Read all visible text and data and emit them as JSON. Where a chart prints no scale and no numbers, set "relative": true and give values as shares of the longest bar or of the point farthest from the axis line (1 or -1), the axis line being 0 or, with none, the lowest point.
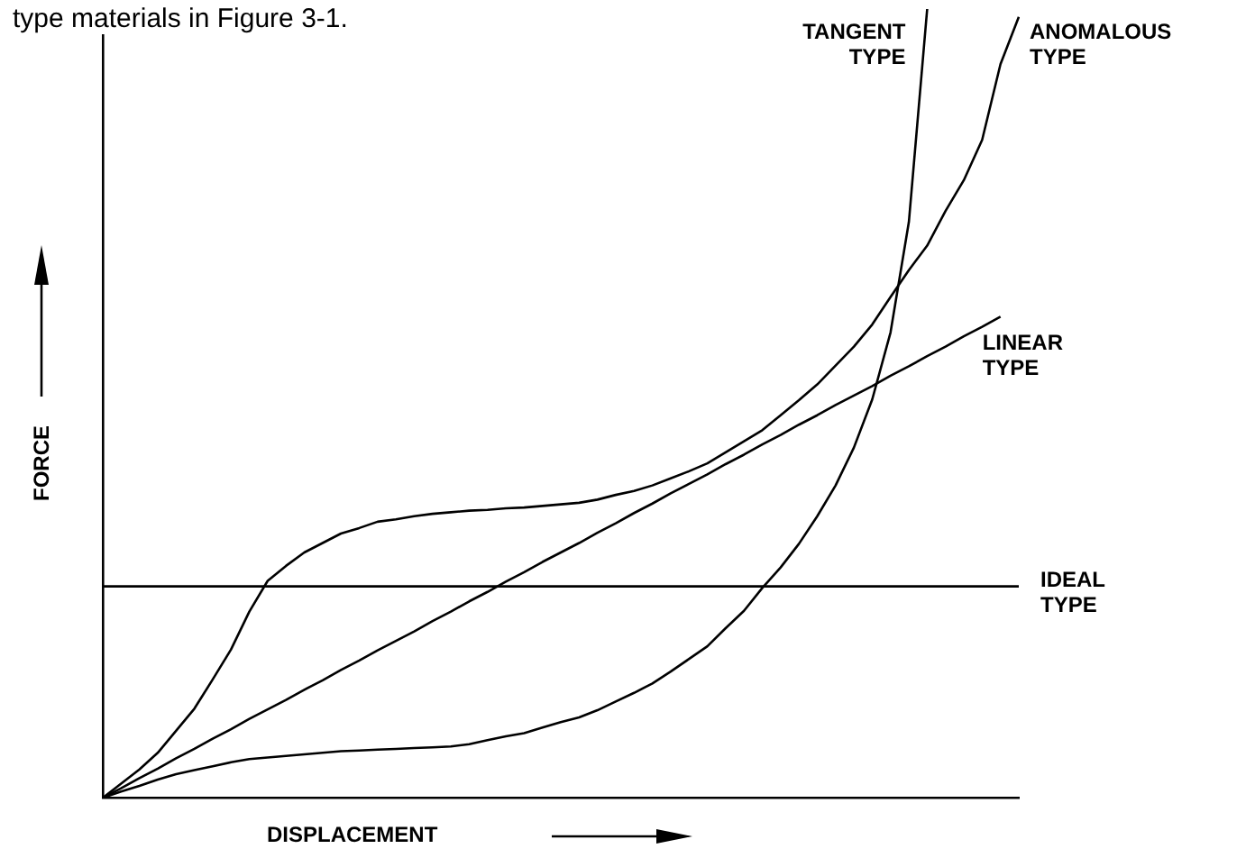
{
  "chart_data": {
    "type": "line",
    "xlabel": "DISPLACEMENT",
    "ylabel": "FORCE",
    "relative": true,
    "legend": false,
    "marker": "none",
    "line_style": "solid",
    "annotations": [
      "type materials in Figure 3-1."
    ],
    "categories": [
      null,
      null,
      null,
      null,
      null,
      null,
      null,
      null,
      null,
      null,
      null,
      null,
      null,
      null,
      null,
      null,
      null,
      null,
      null,
      null,
      null,
      null,
      null,
      null,
      null,
      null,
      null,
      null,
      null,
      null,
      null,
      null,
      null,
      null,
      null,
      null,
      null,
      null,
      null,
      null,
      null,
      null,
      null,
      null,
      null,
      null,
      null,
      null,
      null,
      null,
      null
    ],
    "series": [
      {
        "name": "TANGENT TYPE",
        "color": "#000000",
        "values": [
          0,
          0.008,
          0.015,
          0.023,
          0.03,
          0.035,
          0.04,
          0.045,
          0.049,
          0.051,
          0.053,
          0.055,
          0.057,
          0.059,
          0.06,
          0.061,
          0.062,
          0.063,
          0.064,
          0.065,
          0.068,
          0.073,
          0.078,
          0.082,
          0.089,
          0.096,
          0.102,
          0.111,
          0.122,
          0.133,
          0.145,
          0.16,
          0.176,
          0.192,
          0.215,
          0.237,
          0.266,
          0.292,
          0.322,
          0.357,
          0.396,
          0.444,
          0.505,
          0.59,
          0.73,
          1,
          null,
          null,
          null,
          null,
          null
        ]
      },
      {
        "name": "ANOMALOUS TYPE",
        "color": "#000000",
        "values": [
          0,
          0.018,
          0.036,
          0.057,
          0.085,
          0.113,
          0.15,
          0.188,
          0.236,
          0.275,
          0.294,
          0.311,
          0.323,
          0.335,
          0.342,
          0.35,
          0.353,
          0.357,
          0.36,
          0.362,
          0.364,
          0.365,
          0.367,
          0.368,
          0.37,
          0.372,
          0.374,
          0.378,
          0.384,
          0.389,
          0.396,
          0.405,
          0.414,
          0.424,
          0.438,
          0.452,
          0.466,
          0.485,
          0.504,
          0.524,
          0.548,
          0.572,
          0.6,
          0.635,
          0.669,
          0.7,
          0.744,
          0.783,
          0.834,
          0.93,
          0.99
        ]
      },
      {
        "name": "LINEAR TYPE",
        "color": "#000000",
        "values": [
          0,
          0.012,
          0.025,
          0.037,
          0.05,
          0.062,
          0.075,
          0.087,
          0.1,
          0.112,
          0.124,
          0.137,
          0.149,
          0.162,
          0.174,
          0.187,
          0.199,
          0.211,
          0.224,
          0.236,
          0.249,
          0.261,
          0.274,
          0.286,
          0.299,
          0.311,
          0.323,
          0.336,
          0.348,
          0.361,
          0.373,
          0.386,
          0.398,
          0.41,
          0.423,
          0.435,
          0.448,
          0.46,
          0.473,
          0.485,
          0.498,
          0.51,
          0.522,
          0.535,
          0.547,
          0.56,
          0.572,
          0.585,
          0.597,
          0.61,
          null
        ]
      },
      {
        "name": "IDEAL TYPE",
        "color": "#000000",
        "values": [
          0.268,
          0.268,
          0.268,
          0.268,
          0.268,
          0.268,
          0.268,
          0.268,
          0.268,
          0.268,
          0.268,
          0.268,
          0.268,
          0.268,
          0.268,
          0.268,
          0.268,
          0.268,
          0.268,
          0.268,
          0.268,
          0.268,
          0.268,
          0.268,
          0.268,
          0.268,
          0.268,
          0.268,
          0.268,
          0.268,
          0.268,
          0.268,
          0.268,
          0.268,
          0.268,
          0.268,
          0.268,
          0.268,
          0.268,
          0.268,
          0.268,
          0.268,
          0.268,
          0.268,
          0.268,
          0.268,
          0.268,
          0.268,
          0.268,
          0.268,
          0.268
        ]
      }
    ]
  }
}
